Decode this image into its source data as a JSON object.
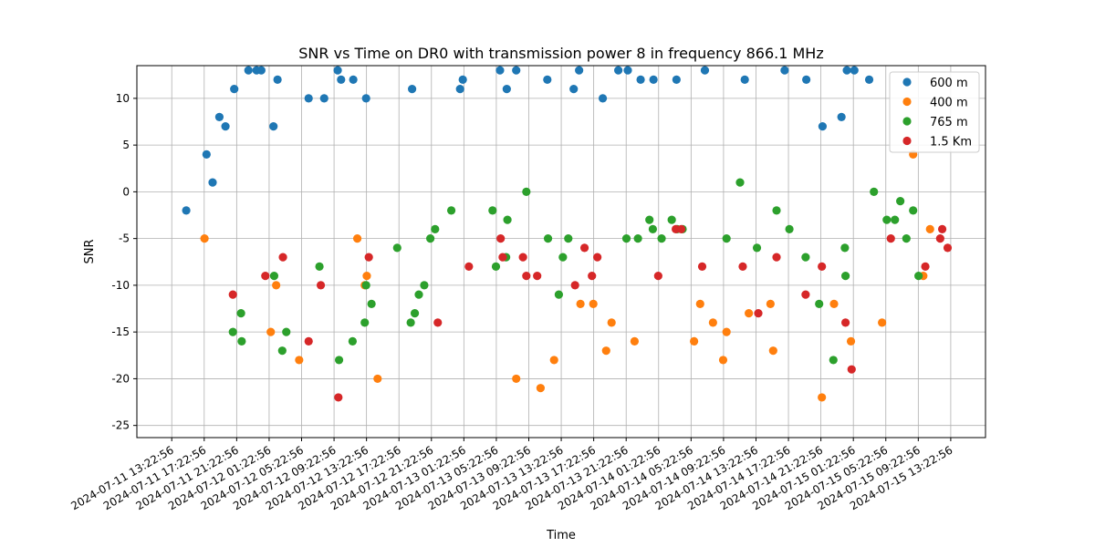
{
  "chart_data": {
    "type": "scatter",
    "title": "SNR vs Time on DR0 with transmission power 8 in frequency 866.1 MHz",
    "xlabel": "Time",
    "ylabel": "SNR",
    "xlim": [
      "2024-07-11 09:05",
      "2024-07-15 17:40"
    ],
    "ylim": [
      -26.3,
      13.5
    ],
    "grid": true,
    "legend_position": "top-right",
    "x_ticks": [
      "2024-07-11 13:22:56",
      "2024-07-11 17:22:56",
      "2024-07-11 21:22:56",
      "2024-07-12 01:22:56",
      "2024-07-12 05:22:56",
      "2024-07-12 09:22:56",
      "2024-07-12 13:22:56",
      "2024-07-12 17:22:56",
      "2024-07-12 21:22:56",
      "2024-07-13 01:22:56",
      "2024-07-13 05:22:56",
      "2024-07-13 09:22:56",
      "2024-07-13 13:22:56",
      "2024-07-13 17:22:56",
      "2024-07-13 21:22:56",
      "2024-07-14 01:22:56",
      "2024-07-14 05:22:56",
      "2024-07-14 09:22:56",
      "2024-07-14 13:22:56",
      "2024-07-14 17:22:56",
      "2024-07-14 21:22:56",
      "2024-07-15 01:22:56",
      "2024-07-15 05:22:56",
      "2024-07-15 09:22:56",
      "2024-07-15 13:22:56"
    ],
    "y_ticks": [
      -25,
      -20,
      -15,
      -10,
      -5,
      0,
      5,
      10
    ],
    "series": [
      {
        "name": "600 m",
        "color": "#1f77b4",
        "points": [
          [
            "2024-07-11 15:10",
            -2
          ],
          [
            "2024-07-11 17:40",
            4
          ],
          [
            "2024-07-11 18:25",
            1
          ],
          [
            "2024-07-11 19:15",
            8
          ],
          [
            "2024-07-11 20:00",
            7
          ],
          [
            "2024-07-11 21:05",
            11
          ],
          [
            "2024-07-11 22:50",
            13
          ],
          [
            "2024-07-11 23:50",
            13
          ],
          [
            "2024-07-12 00:25",
            13
          ],
          [
            "2024-07-12 01:55",
            7
          ],
          [
            "2024-07-12 02:25",
            12
          ],
          [
            "2024-07-12 06:15",
            10
          ],
          [
            "2024-07-12 08:10",
            10
          ],
          [
            "2024-07-12 09:50",
            13
          ],
          [
            "2024-07-12 10:15",
            12
          ],
          [
            "2024-07-12 11:45",
            12
          ],
          [
            "2024-07-12 13:20",
            10
          ],
          [
            "2024-07-12 19:00",
            11
          ],
          [
            "2024-07-13 00:55",
            11
          ],
          [
            "2024-07-13 01:15",
            12
          ],
          [
            "2024-07-13 05:50",
            13
          ],
          [
            "2024-07-13 06:40",
            11
          ],
          [
            "2024-07-13 07:50",
            13
          ],
          [
            "2024-07-13 11:40",
            12
          ],
          [
            "2024-07-13 14:55",
            11
          ],
          [
            "2024-07-13 15:35",
            13
          ],
          [
            "2024-07-13 18:30",
            10
          ],
          [
            "2024-07-13 20:25",
            13
          ],
          [
            "2024-07-13 21:35",
            13
          ],
          [
            "2024-07-13 23:10",
            12
          ],
          [
            "2024-07-14 00:45",
            12
          ],
          [
            "2024-07-14 03:35",
            12
          ],
          [
            "2024-07-14 07:05",
            13
          ],
          [
            "2024-07-14 12:00",
            12
          ],
          [
            "2024-07-14 16:55",
            13
          ],
          [
            "2024-07-14 19:35",
            12
          ],
          [
            "2024-07-14 21:35",
            7
          ],
          [
            "2024-07-14 23:55",
            8
          ],
          [
            "2024-07-15 00:35",
            13
          ],
          [
            "2024-07-15 01:30",
            13
          ],
          [
            "2024-07-15 03:20",
            12
          ]
        ]
      },
      {
        "name": "400 m",
        "color": "#ff7f0e",
        "points": [
          [
            "2024-07-11 17:25",
            -5
          ],
          [
            "2024-07-12 01:35",
            -15
          ],
          [
            "2024-07-12 02:15",
            -10
          ],
          [
            "2024-07-12 05:05",
            -18
          ],
          [
            "2024-07-12 12:15",
            -5
          ],
          [
            "2024-07-12 13:10",
            -10
          ],
          [
            "2024-07-12 13:25",
            -9
          ],
          [
            "2024-07-12 14:45",
            -20
          ],
          [
            "2024-07-13 07:50",
            -20
          ],
          [
            "2024-07-13 10:50",
            -21
          ],
          [
            "2024-07-13 12:30",
            -18
          ],
          [
            "2024-07-13 15:45",
            -12
          ],
          [
            "2024-07-13 17:20",
            -12
          ],
          [
            "2024-07-13 18:55",
            -17
          ],
          [
            "2024-07-13 19:35",
            -14
          ],
          [
            "2024-07-13 22:25",
            -16
          ],
          [
            "2024-07-14 05:45",
            -16
          ],
          [
            "2024-07-14 06:30",
            -12
          ],
          [
            "2024-07-14 08:05",
            -14
          ],
          [
            "2024-07-14 09:20",
            -18
          ],
          [
            "2024-07-14 09:45",
            -15
          ],
          [
            "2024-07-14 12:30",
            -13
          ],
          [
            "2024-07-14 15:10",
            -12
          ],
          [
            "2024-07-14 15:30",
            -17
          ],
          [
            "2024-07-14 21:30",
            -22
          ],
          [
            "2024-07-14 23:00",
            -12
          ],
          [
            "2024-07-15 01:05",
            -16
          ],
          [
            "2024-07-15 04:55",
            -14
          ],
          [
            "2024-07-15 08:45",
            4
          ],
          [
            "2024-07-15 10:00",
            -9
          ],
          [
            "2024-07-15 10:50",
            -4
          ]
        ]
      },
      {
        "name": "765 m",
        "color": "#2ca02c",
        "points": [
          [
            "2024-07-11 20:55",
            -15
          ],
          [
            "2024-07-11 21:55",
            -13
          ],
          [
            "2024-07-11 22:00",
            -16
          ],
          [
            "2024-07-12 02:00",
            -9
          ],
          [
            "2024-07-12 03:00",
            -17
          ],
          [
            "2024-07-12 03:30",
            -15
          ],
          [
            "2024-07-12 07:35",
            -8
          ],
          [
            "2024-07-12 10:00",
            -18
          ],
          [
            "2024-07-12 11:40",
            -16
          ],
          [
            "2024-07-12 13:10",
            -14
          ],
          [
            "2024-07-12 13:20",
            -10
          ],
          [
            "2024-07-12 14:00",
            -12
          ],
          [
            "2024-07-12 17:10",
            -6
          ],
          [
            "2024-07-12 18:50",
            -14
          ],
          [
            "2024-07-12 19:20",
            -13
          ],
          [
            "2024-07-12 19:50",
            -11
          ],
          [
            "2024-07-12 20:30",
            -10
          ],
          [
            "2024-07-12 21:15",
            -5
          ],
          [
            "2024-07-12 21:50",
            -4
          ],
          [
            "2024-07-12 23:50",
            -2
          ],
          [
            "2024-07-13 04:55",
            -2
          ],
          [
            "2024-07-13 05:20",
            -8
          ],
          [
            "2024-07-13 06:35",
            -7
          ],
          [
            "2024-07-13 06:45",
            -3
          ],
          [
            "2024-07-13 09:05",
            0
          ],
          [
            "2024-07-13 11:45",
            -5
          ],
          [
            "2024-07-13 13:05",
            -11
          ],
          [
            "2024-07-13 13:35",
            -7
          ],
          [
            "2024-07-13 14:15",
            -5
          ],
          [
            "2024-07-13 21:25",
            -5
          ],
          [
            "2024-07-13 22:50",
            -5
          ],
          [
            "2024-07-14 00:15",
            -3
          ],
          [
            "2024-07-14 00:40",
            -4
          ],
          [
            "2024-07-14 01:45",
            -5
          ],
          [
            "2024-07-14 03:00",
            -3
          ],
          [
            "2024-07-14 03:40",
            -4
          ],
          [
            "2024-07-14 04:20",
            -4
          ],
          [
            "2024-07-14 09:45",
            -5
          ],
          [
            "2024-07-14 11:25",
            1
          ],
          [
            "2024-07-14 13:30",
            -6
          ],
          [
            "2024-07-14 15:55",
            -2
          ],
          [
            "2024-07-14 17:30",
            -4
          ],
          [
            "2024-07-14 19:30",
            -7
          ],
          [
            "2024-07-14 21:10",
            -12
          ],
          [
            "2024-07-14 22:55",
            -18
          ],
          [
            "2024-07-15 00:20",
            -6
          ],
          [
            "2024-07-15 00:25",
            -9
          ],
          [
            "2024-07-15 03:55",
            0
          ],
          [
            "2024-07-15 05:30",
            -3
          ],
          [
            "2024-07-15 06:30",
            -3
          ],
          [
            "2024-07-15 07:10",
            -1
          ],
          [
            "2024-07-15 07:55",
            -5
          ],
          [
            "2024-07-15 08:45",
            -2
          ],
          [
            "2024-07-15 09:25",
            -9
          ]
        ]
      },
      {
        "name": "1.5 Km",
        "color": "#d62728",
        "points": [
          [
            "2024-07-11 20:55",
            -11
          ],
          [
            "2024-07-12 00:55",
            -9
          ],
          [
            "2024-07-12 03:05",
            -7
          ],
          [
            "2024-07-12 06:15",
            -16
          ],
          [
            "2024-07-12 07:45",
            -10
          ],
          [
            "2024-07-12 09:55",
            -22
          ],
          [
            "2024-07-12 13:40",
            -7
          ],
          [
            "2024-07-12 22:10",
            -14
          ],
          [
            "2024-07-13 02:00",
            -8
          ],
          [
            "2024-07-13 05:55",
            -5
          ],
          [
            "2024-07-13 06:10",
            -7
          ],
          [
            "2024-07-13 08:40",
            -7
          ],
          [
            "2024-07-13 09:05",
            -9
          ],
          [
            "2024-07-13 10:25",
            -9
          ],
          [
            "2024-07-13 15:05",
            -10
          ],
          [
            "2024-07-13 16:15",
            -6
          ],
          [
            "2024-07-13 17:10",
            -9
          ],
          [
            "2024-07-13 17:50",
            -7
          ],
          [
            "2024-07-14 01:20",
            -9
          ],
          [
            "2024-07-14 03:30",
            -4
          ],
          [
            "2024-07-14 04:10",
            -4
          ],
          [
            "2024-07-14 06:45",
            -8
          ],
          [
            "2024-07-14 11:45",
            -8
          ],
          [
            "2024-07-14 13:40",
            -13
          ],
          [
            "2024-07-14 15:55",
            -7
          ],
          [
            "2024-07-14 19:30",
            -11
          ],
          [
            "2024-07-14 21:30",
            -8
          ],
          [
            "2024-07-15 00:25",
            -14
          ],
          [
            "2024-07-15 01:10",
            -19
          ],
          [
            "2024-07-15 06:00",
            -5
          ],
          [
            "2024-07-15 10:15",
            -8
          ],
          [
            "2024-07-15 12:05",
            -5
          ],
          [
            "2024-07-15 12:20",
            -4
          ],
          [
            "2024-07-15 13:00",
            -6
          ]
        ]
      }
    ]
  }
}
